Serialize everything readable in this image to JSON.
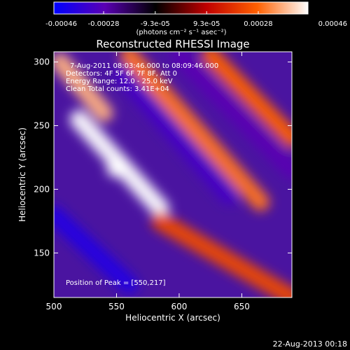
{
  "chart_data": {
    "type": "heatmap",
    "title": "Reconstructed RHESSI Image",
    "xlabel": "Heliocentric X (arcsec)",
    "ylabel": "Heliocentric Y (arcsec)",
    "xlim": [
      500,
      690
    ],
    "ylim": [
      115,
      308
    ],
    "x_ticks": [
      "500",
      "550",
      "600",
      "650"
    ],
    "x_tick_values": [
      500,
      550,
      600,
      650
    ],
    "y_ticks": [
      "150",
      "200",
      "250",
      "300"
    ],
    "y_tick_values": [
      150,
      200,
      250,
      300
    ],
    "colorbar": {
      "min": -0.00046,
      "max": 0.00046,
      "ticks": [
        "-0.00046",
        "-0.00028",
        "-9.3e-05",
        "9.3e-05",
        "0.00028",
        "0.00046"
      ],
      "tick_values": [
        -0.00046,
        -0.00028,
        -9.3e-05,
        9.3e-05,
        0.00028,
        0.00046
      ],
      "unit_label": "(photons cm⁻² s⁻¹ asec⁻²)",
      "colors": [
        "#0000ff",
        "#5a00b4",
        "#000000",
        "#c00000",
        "#ff6000",
        "#ffffff"
      ]
    },
    "annotations": [
      "7-Aug-2011 08:03:46.000 to 08:09:46.000",
      "Detectors: 4F 5F 6F 7F 8F, Att 0",
      "Energy Range: 12.0 - 25.0 keV",
      "Clean     Total counts: 3.41E+04"
    ],
    "peak_label": "Position of Peak = [550,217]",
    "peak": [
      550,
      217
    ],
    "bright_ridges": [
      {
        "from": [
          505,
          300
        ],
        "to": [
          540,
          260
        ],
        "level": 0.8
      },
      {
        "from": [
          520,
          255
        ],
        "to": [
          585,
          185
        ],
        "level": 1.0
      },
      {
        "from": [
          560,
          305
        ],
        "to": [
          665,
          190
        ],
        "level": 0.65
      },
      {
        "from": [
          625,
          305
        ],
        "to": [
          690,
          240
        ],
        "level": 0.6
      },
      {
        "from": [
          585,
          175
        ],
        "to": [
          690,
          115
        ],
        "level": 0.5
      }
    ],
    "dark_ridges": [
      {
        "from": [
          500,
          180
        ],
        "to": [
          560,
          125
        ],
        "level": -0.85
      },
      {
        "from": [
          555,
          290
        ],
        "to": [
          640,
          195
        ],
        "level": -0.7
      },
      {
        "from": [
          600,
          305
        ],
        "to": [
          690,
          215
        ],
        "level": -0.6
      }
    ]
  },
  "footer": {
    "date": "22-Aug-2013 00:18"
  }
}
